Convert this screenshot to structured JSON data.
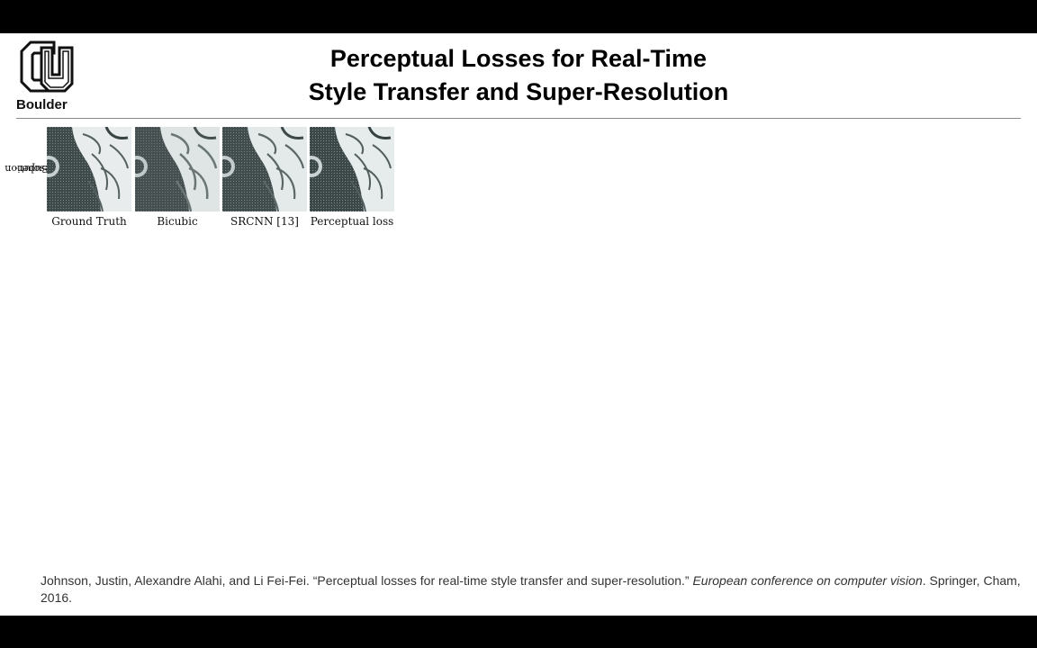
{
  "logo": {
    "icon": "cu-logo-icon",
    "label": "Boulder"
  },
  "title": {
    "line1": "Perceptual Losses for Real-Time",
    "line2": "Style Transfer and Super-Resolution"
  },
  "figure": {
    "row_label_line1": "Super-",
    "row_label_line2": "Resolution",
    "panels": [
      {
        "caption": "Ground Truth"
      },
      {
        "caption": "Bicubic"
      },
      {
        "caption": "SRCNN [13]"
      },
      {
        "caption": "Perceptual loss"
      }
    ]
  },
  "citation": {
    "authors_title": "Johnson, Justin, Alexandre Alahi, and Li Fei-Fei. “Perceptual losses for real-time style transfer and super-resolution.” ",
    "venue": "European conference on computer vision",
    "publisher": ". Springer, Cham, 2016."
  },
  "colors": {
    "background": "#000000",
    "slide": "#ffffff",
    "text": "#000000"
  }
}
